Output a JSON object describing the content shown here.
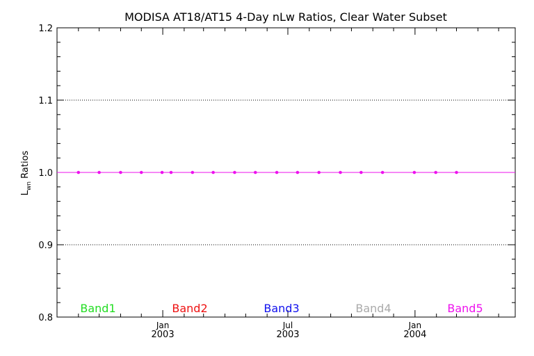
{
  "chart_data": {
    "type": "line",
    "title": "MODISA AT18/AT15 4-Day nLw Ratios, Clear Water Subset",
    "ylabel": {
      "main": "L",
      "sub": "wn",
      "rest": " Ratios"
    },
    "xlabel": "",
    "ylim": [
      0.8,
      1.2
    ],
    "yticks": [
      "0.8",
      "0.9",
      "1.0",
      "1.1",
      "1.2"
    ],
    "xlim": [
      "2002-08-01",
      "2004-05-25"
    ],
    "xticks": [
      {
        "month": "Jan",
        "year": "2003",
        "date": "2003-01-01"
      },
      {
        "month": "Jul",
        "year": "2003",
        "date": "2003-07-01"
      },
      {
        "month": "Jan",
        "year": "2004",
        "date": "2004-01-01"
      }
    ],
    "grid": {
      "y_dotted": [
        0.9,
        1.0,
        1.1
      ]
    },
    "legend_placement": "bottom",
    "series": [
      {
        "name": "Band1",
        "color": "#22dd22"
      },
      {
        "name": "Band2",
        "color": "#ee1111"
      },
      {
        "name": "Band3",
        "color": "#1111ee"
      },
      {
        "name": "Band4",
        "color": "#aaaaaa"
      },
      {
        "name": "Band5",
        "color": "#ee11ee",
        "x": [
          "2002-09-01",
          "2002-10-01",
          "2002-11-01",
          "2002-12-01",
          "2002-12-31",
          "2003-01-13",
          "2003-02-13",
          "2003-03-15",
          "2003-04-15",
          "2003-05-15",
          "2003-06-15",
          "2003-07-15",
          "2003-08-15",
          "2003-09-15",
          "2003-10-15",
          "2003-11-15",
          "2003-12-31",
          "2004-01-31",
          "2004-03-01"
        ],
        "y": [
          1,
          1,
          1,
          1,
          1,
          1,
          1,
          1,
          1,
          1,
          1,
          1,
          1,
          1,
          1,
          1,
          1,
          1,
          1
        ]
      }
    ]
  }
}
